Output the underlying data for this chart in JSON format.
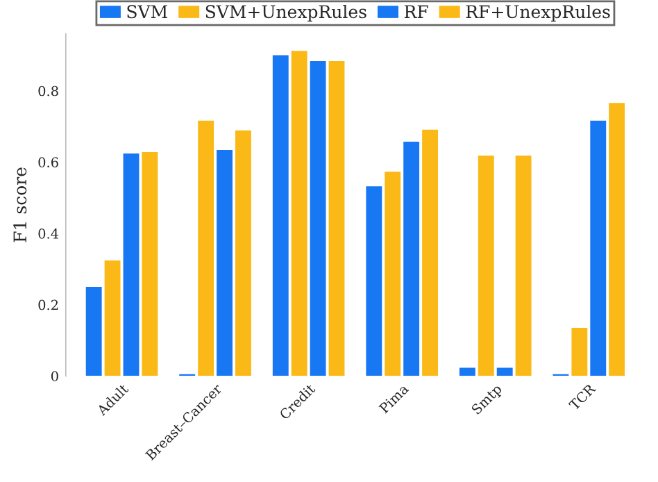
{
  "chart_data": {
    "type": "bar",
    "ylabel": "F1 score",
    "categories": [
      "Adult",
      "Breast–Cancer",
      "Credit",
      "Pima",
      "Smtp",
      "TCR"
    ],
    "series": [
      {
        "name": "SVM",
        "color": "#1877f2",
        "values": [
          0.25,
          0.005,
          0.9,
          0.532,
          0.023,
          0.005
        ]
      },
      {
        "name": "SVM+UnexpRules",
        "color": "#fbb917",
        "values": [
          0.324,
          0.716,
          0.912,
          0.573,
          0.618,
          0.135
        ]
      },
      {
        "name": "RF",
        "color": "#1877f2",
        "values": [
          0.624,
          0.634,
          0.883,
          0.657,
          0.023,
          0.716
        ]
      },
      {
        "name": "RF+UnexpRules",
        "color": "#fbb917",
        "values": [
          0.628,
          0.689,
          0.883,
          0.691,
          0.618,
          0.766
        ]
      }
    ],
    "ylim": [
      0,
      0.96
    ],
    "yticks": [
      0,
      0.2,
      0.4,
      0.6,
      0.8
    ],
    "grid": false,
    "legend": "top"
  }
}
